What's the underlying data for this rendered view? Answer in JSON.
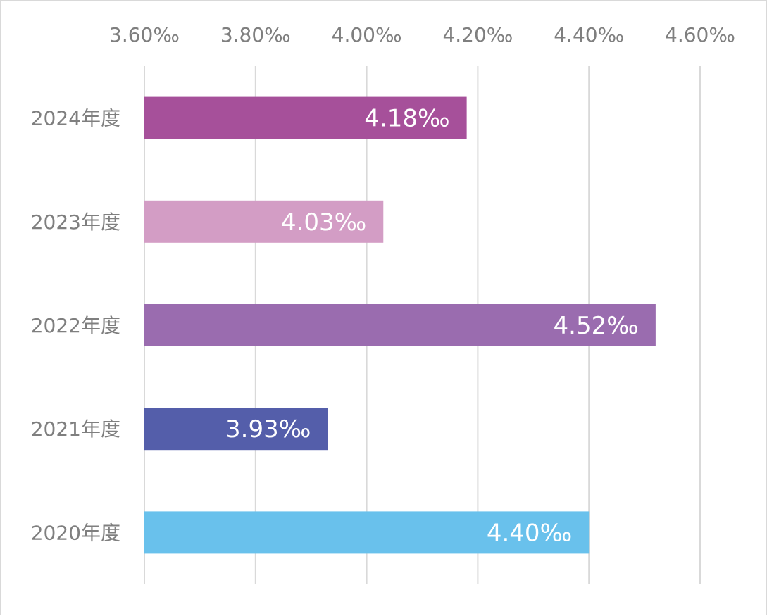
{
  "chart_data": {
    "type": "bar",
    "orientation": "horizontal",
    "categories": [
      "2024年度",
      "2023年度",
      "2022年度",
      "2021年度",
      "2020年度"
    ],
    "values": [
      4.18,
      4.03,
      4.52,
      3.93,
      4.4
    ],
    "value_labels": [
      "4.18‰",
      "4.03‰",
      "4.52‰",
      "3.93‰",
      "4.40‰"
    ],
    "colors": [
      "#a6509a",
      "#d39dc5",
      "#9a6caf",
      "#545eaa",
      "#69c1ec"
    ],
    "xlim": [
      3.6,
      4.6
    ],
    "x_ticks": [
      3.6,
      3.8,
      4.0,
      4.2,
      4.4,
      4.6
    ],
    "x_tick_labels": [
      "3.60‰",
      "3.80‰",
      "4.00‰",
      "4.20‰",
      "4.40‰",
      "4.60‰"
    ],
    "x_axis_position": "top",
    "grid": true,
    "grid_color": "#d9d9d9",
    "title": "",
    "xlabel": "",
    "ylabel": "",
    "legend": "none"
  }
}
